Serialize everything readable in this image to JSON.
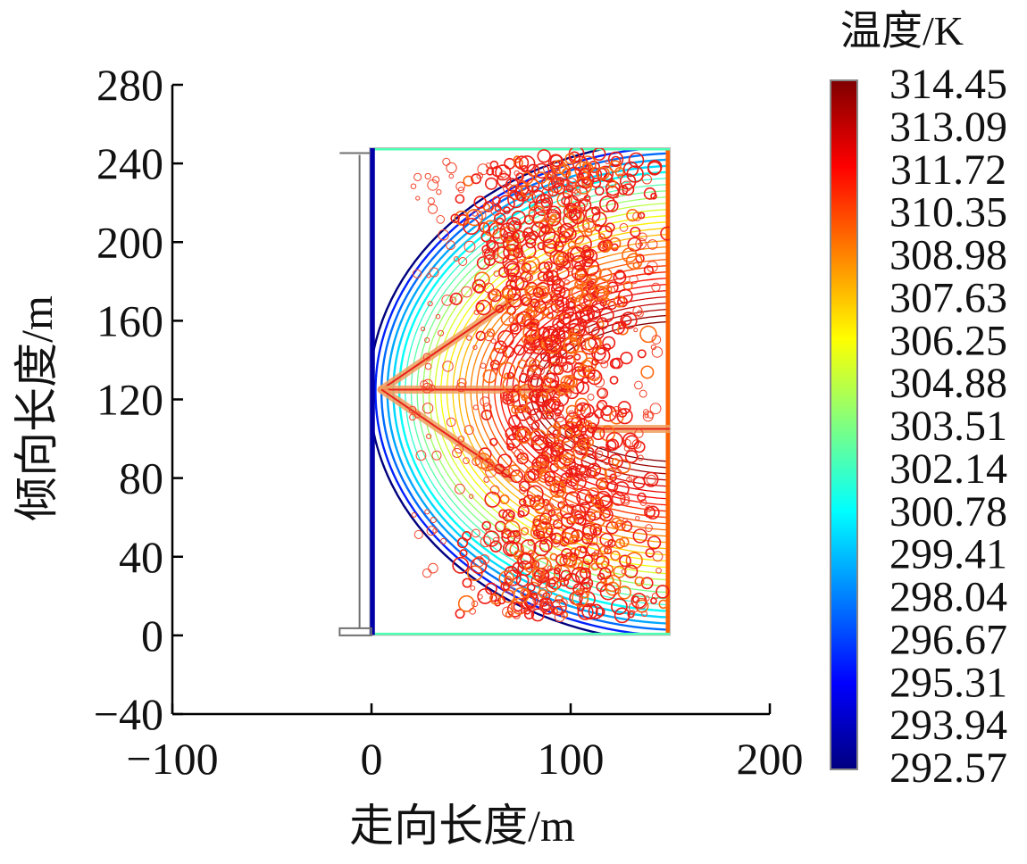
{
  "chart_data": {
    "type": "heatmap",
    "title": "",
    "xlabel": "走向长度/m",
    "ylabel": "倾向长度/m",
    "xlim": [
      -100,
      200
    ],
    "ylim": [
      -40,
      280
    ],
    "x_ticks": [
      -100,
      0,
      100,
      200
    ],
    "x_tick_labels": [
      "−100",
      "0",
      "100",
      "200"
    ],
    "y_ticks": [
      -40,
      0,
      40,
      80,
      120,
      160,
      200,
      240,
      280
    ],
    "y_tick_labels": [
      "−40",
      "0",
      "40",
      "80",
      "120",
      "160",
      "200",
      "240",
      "280"
    ],
    "field_region": {
      "x": [
        -1,
        150
      ],
      "y": [
        0,
        248
      ]
    },
    "hot_zone": {
      "x_center": 95,
      "x_halfwidth": 32,
      "y": [
        10,
        245
      ],
      "temperature": 313.09
    },
    "diagonal_bands": [
      {
        "from": [
          5,
          125
        ],
        "to": [
          70,
          170
        ]
      },
      {
        "from": [
          5,
          125
        ],
        "to": [
          100,
          125
        ]
      },
      {
        "from": [
          5,
          125
        ],
        "to": [
          70,
          80
        ]
      },
      {
        "from": [
          110,
          105
        ],
        "to": [
          150,
          105
        ]
      }
    ],
    "colorbar": {
      "title": "温度/K",
      "min": 292.57,
      "max": 314.45,
      "levels": [
        "314.45",
        "313.09",
        "311.72",
        "310.35",
        "308.98",
        "307.63",
        "306.25",
        "304.88",
        "303.51",
        "302.14",
        "300.78",
        "299.41",
        "298.04",
        "296.67",
        "295.31",
        "293.94",
        "292.57"
      ],
      "colormap": [
        "#00007f",
        "#0000ff",
        "#0080ff",
        "#00ffff",
        "#80ff80",
        "#ffff00",
        "#ff8000",
        "#ff0000",
        "#7f0000"
      ]
    },
    "grid": false,
    "legend": "colorbar-right"
  }
}
